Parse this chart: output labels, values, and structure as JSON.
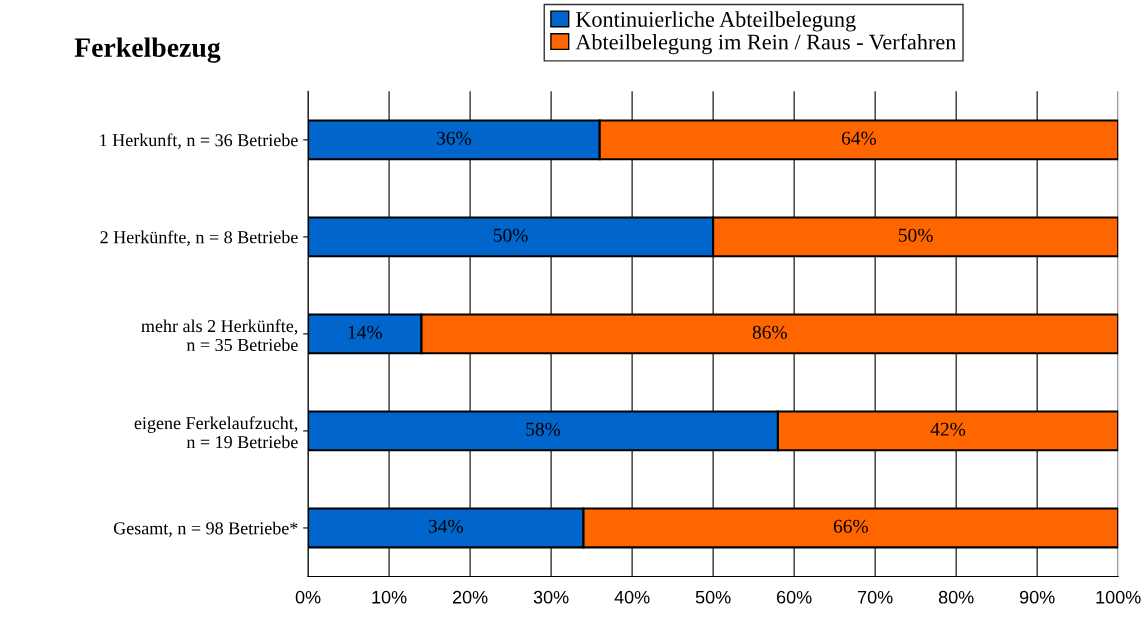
{
  "chart_data": {
    "type": "bar",
    "orientation": "horizontal",
    "stacked": true,
    "title": "Ferkelbezug",
    "categories": [
      "1 Herkunft, n = 36 Betriebe",
      "2 Herkünfte, n = 8 Betriebe",
      "mehr als 2 Herkünfte,\nn = 35 Betriebe",
      "eigene Ferkelaufzucht,\nn = 19 Betriebe",
      "Gesamt, n = 98 Betriebe*"
    ],
    "series": [
      {
        "name": "Kontinuierliche Abteilbelegung",
        "color": "#0066cc",
        "values": [
          36,
          50,
          14,
          58,
          34
        ],
        "value_labels": [
          "36%",
          "50%",
          "14%",
          "58%",
          "34%"
        ]
      },
      {
        "name": "Abteilbelegung im Rein / Raus - Verfahren",
        "color": "#ff6600",
        "values": [
          64,
          50,
          86,
          42,
          66
        ],
        "value_labels": [
          "64%",
          "50%",
          "86%",
          "42%",
          "66%"
        ]
      }
    ],
    "xlim": [
      0,
      100
    ],
    "xticks": [
      {
        "value": 0,
        "label": "0%"
      },
      {
        "value": 10,
        "label": "10%"
      },
      {
        "value": 20,
        "label": "20%"
      },
      {
        "value": 30,
        "label": "30%"
      },
      {
        "value": 40,
        "label": "40%"
      },
      {
        "value": 50,
        "label": "50%"
      },
      {
        "value": 60,
        "label": "60%"
      },
      {
        "value": 70,
        "label": "70%"
      },
      {
        "value": 80,
        "label": "80%"
      },
      {
        "value": 90,
        "label": "90%"
      },
      {
        "value": 100,
        "label": "100%"
      }
    ],
    "grid": "x",
    "legend": "top"
  }
}
